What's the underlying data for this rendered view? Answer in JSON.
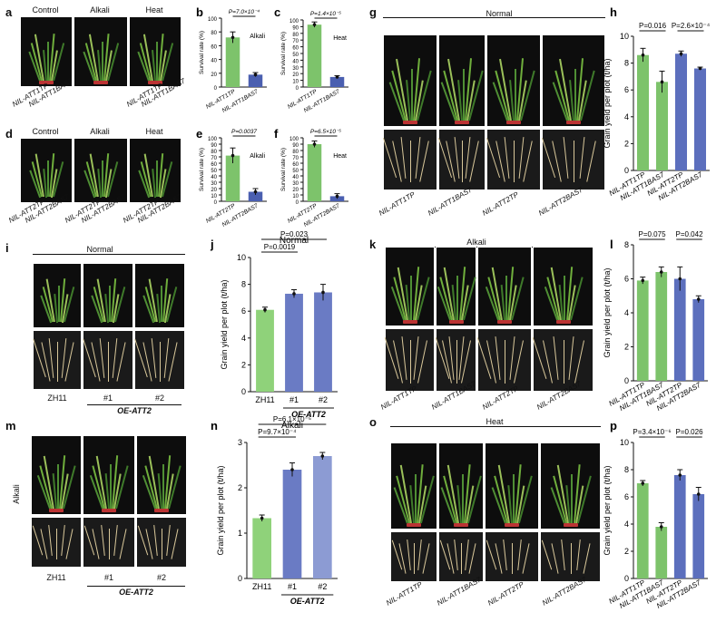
{
  "panels": {
    "a": {
      "label": "a",
      "headers": [
        "Control",
        "Alkali",
        "Heat"
      ],
      "xlabels": [
        "NIL-ATT1TP",
        "NIL-ATT1BAS7",
        "NIL-ATT1TP",
        "NIL-ATT1BAS7"
      ]
    },
    "d": {
      "label": "d",
      "headers": [
        "Control",
        "Alkali",
        "Heat"
      ],
      "xlabels": [
        "NIL-ATT2TP",
        "NIL-ATT2BAS7",
        "NIL-ATT2TP",
        "NIL-ATT2BAS7",
        "NIL-ATT2TP",
        "NIL-ATT2BAS7"
      ]
    },
    "g": {
      "label": "g",
      "header": "Normal",
      "xlabels": [
        "NIL-ATT1TP",
        "NIL-ATT1BAS7",
        "NIL-ATT2TP",
        "NIL-ATT2BAS7"
      ]
    },
    "i": {
      "label": "i",
      "header": "Normal",
      "xlabels": [
        "ZH11",
        "#1",
        "#2"
      ],
      "group": "OE-ATT2"
    },
    "k": {
      "label": "k",
      "header": "Alkali",
      "xlabels": [
        "NIL-ATT1TP",
        "NIL-ATT1BAS7",
        "NIL-ATT2TP",
        "NIL-ATT2BAS7"
      ]
    },
    "m": {
      "label": "m",
      "side": "Alkali",
      "xlabels": [
        "ZH11",
        "#1",
        "#2"
      ],
      "group": "OE-ATT2"
    },
    "o": {
      "label": "o",
      "header": "Heat",
      "xlabels": [
        "NIL-ATT1TP",
        "NIL-ATT1BAS7",
        "NIL-ATT2TP",
        "NIL-ATT2BAS7"
      ]
    }
  },
  "chart_data": [
    {
      "id": "b",
      "type": "bar",
      "ylabel": "Survival rate (%)",
      "ylim": [
        0,
        100
      ],
      "yticks": [
        0,
        20,
        40,
        60,
        80,
        100
      ],
      "categories": [
        "NIL-ATT1TP",
        "NIL-ATT1BAS7"
      ],
      "values": [
        72,
        18
      ],
      "errors": [
        8,
        3
      ],
      "colors": [
        "#7dc36b",
        "#4a5fb0"
      ],
      "annotation": "P=7.0×10⁻⁴",
      "inset": "Alkali"
    },
    {
      "id": "c",
      "type": "bar",
      "ylabel": "Survival rate (%)",
      "ylim": [
        0,
        100
      ],
      "yticks": [
        0,
        10,
        20,
        30,
        40,
        50,
        60,
        70,
        80,
        90,
        100
      ],
      "categories": [
        "NIL-ATT1TP",
        "NIL-ATT1BAS7"
      ],
      "values": [
        93,
        15
      ],
      "errors": [
        4,
        2
      ],
      "colors": [
        "#7dc36b",
        "#4a5fb0"
      ],
      "annotation": "P=1.4×10⁻⁵",
      "inset": "Heat"
    },
    {
      "id": "e",
      "type": "bar",
      "ylabel": "Survival rate (%)",
      "ylim": [
        0,
        100
      ],
      "yticks": [
        0,
        10,
        20,
        30,
        40,
        50,
        60,
        70,
        80,
        90,
        100
      ],
      "categories": [
        "NIL-ATT2TP",
        "NIL-ATT2BAS7"
      ],
      "values": [
        72,
        15
      ],
      "errors": [
        12,
        5
      ],
      "colors": [
        "#7dc36b",
        "#4a5fb0"
      ],
      "annotation": "P=0.0037",
      "inset": "Alkali"
    },
    {
      "id": "f",
      "type": "bar",
      "ylabel": "Survival rate (%)",
      "ylim": [
        0,
        100
      ],
      "yticks": [
        0,
        10,
        20,
        30,
        40,
        50,
        60,
        70,
        80,
        90,
        100
      ],
      "categories": [
        "NIL-ATT2TP",
        "NIL-ATT2BAS7"
      ],
      "values": [
        90,
        8
      ],
      "errors": [
        5,
        4
      ],
      "colors": [
        "#7dc36b",
        "#4a5fb0"
      ],
      "annotation": "P=6.5×10⁻⁵",
      "inset": "Heat"
    },
    {
      "id": "h",
      "type": "bar",
      "ylabel": "Grain yield per plot (t/ha)",
      "ylim": [
        0,
        10
      ],
      "yticks": [
        0,
        2,
        4,
        6,
        8,
        10
      ],
      "categories": [
        "NIL-ATT1TP",
        "NIL-ATT1BAS7",
        "NIL-ATT2TP",
        "NIL-ATT2BAS7"
      ],
      "values": [
        8.6,
        6.6,
        8.7,
        7.6
      ],
      "errors": [
        0.5,
        0.8,
        0.2,
        0.1
      ],
      "colors": [
        "#7dc36b",
        "#7dc36b",
        "#5c6fbd",
        "#5c6fbd"
      ],
      "annotations": [
        {
          "text": "P=0.016",
          "from": 0,
          "to": 1
        },
        {
          "text": "P=2.6×10⁻⁴",
          "from": 2,
          "to": 3
        }
      ]
    },
    {
      "id": "j",
      "type": "bar",
      "title": "Normal",
      "ylabel": "Grain yield per plot (t/ha)",
      "ylim": [
        0,
        10
      ],
      "yticks": [
        0,
        2,
        4,
        6,
        8,
        10
      ],
      "categories": [
        "ZH11",
        "#1",
        "#2"
      ],
      "values": [
        6.1,
        7.3,
        7.4
      ],
      "errors": [
        0.2,
        0.3,
        0.6
      ],
      "colors": [
        "#8fd27a",
        "#6a7bc4",
        "#6a7bc4"
      ],
      "group": "OE-ATT2",
      "annotations": [
        {
          "text": "P=0.0019",
          "from": 0,
          "to": 1
        },
        {
          "text": "P=0.023",
          "from": 0,
          "to": 2
        }
      ]
    },
    {
      "id": "l",
      "type": "bar",
      "ylabel": "Grain yield per plot (t/ha)",
      "ylim": [
        0,
        8
      ],
      "yticks": [
        0,
        2,
        4,
        6,
        8
      ],
      "categories": [
        "NIL-ATT1TP",
        "NIL-ATT1BAS7",
        "NIL-ATT2TP",
        "NIL-ATT2BAS7"
      ],
      "values": [
        5.9,
        6.4,
        6.0,
        4.8
      ],
      "errors": [
        0.2,
        0.3,
        0.7,
        0.2
      ],
      "colors": [
        "#7dc36b",
        "#7dc36b",
        "#5c6fbd",
        "#5c6fbd"
      ],
      "annotations": [
        {
          "text": "P=0.075",
          "from": 0,
          "to": 1
        },
        {
          "text": "P=0.042",
          "from": 2,
          "to": 3
        }
      ]
    },
    {
      "id": "n",
      "type": "bar",
      "title": "Alkali",
      "ylabel": "Grain yield per plot (t/ha)",
      "ylim": [
        0,
        3
      ],
      "yticks": [
        0,
        1,
        2,
        3
      ],
      "categories": [
        "ZH11",
        "#1",
        "#2"
      ],
      "values": [
        1.33,
        2.4,
        2.7
      ],
      "errors": [
        0.07,
        0.15,
        0.08
      ],
      "colors": [
        "#8fd27a",
        "#6a7bc4",
        "#8c9bd3"
      ],
      "group": "OE-ATT2",
      "annotations": [
        {
          "text": "P=9.7×10⁻⁴",
          "from": 0,
          "to": 1
        },
        {
          "text": "P=6.1×10⁻⁵",
          "from": 0,
          "to": 2
        }
      ]
    },
    {
      "id": "p",
      "type": "bar",
      "ylabel": "Grain yield per plot (t/ha)",
      "ylim": [
        0,
        10
      ],
      "yticks": [
        0,
        2,
        4,
        6,
        8,
        10
      ],
      "categories": [
        "NIL-ATT1TP",
        "NIL-ATT1BAS7",
        "NIL-ATT2TP",
        "NIL-ATT2BAS7"
      ],
      "values": [
        7.0,
        3.8,
        7.6,
        6.2
      ],
      "errors": [
        0.2,
        0.3,
        0.4,
        0.5
      ],
      "colors": [
        "#7dc36b",
        "#7dc36b",
        "#5c6fbd",
        "#5c6fbd"
      ],
      "annotations": [
        {
          "text": "P=3.4×10⁻⁶",
          "from": 0,
          "to": 1
        },
        {
          "text": "P=0.026",
          "from": 2,
          "to": 3
        }
      ]
    }
  ]
}
